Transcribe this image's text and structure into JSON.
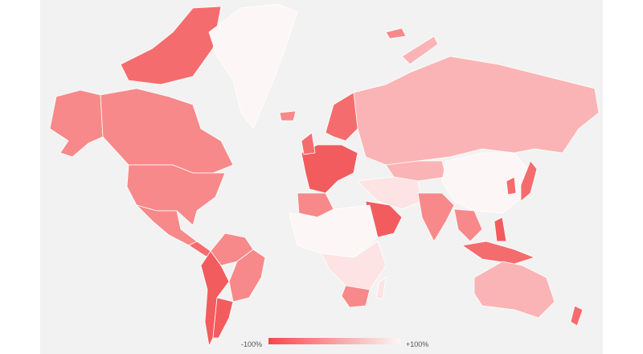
{
  "legend": {
    "min_label": "-100%",
    "max_label": "+100%",
    "color_min": "#f8474a",
    "color_max": "#fdf5f5"
  },
  "colors": {
    "background": "#f2f2f2",
    "strong": "#f25c5e",
    "medium": "#f7898a",
    "light": "#fbb4b5",
    "pale": "#fde3e3",
    "near_white": "#fdf6f6"
  }
}
